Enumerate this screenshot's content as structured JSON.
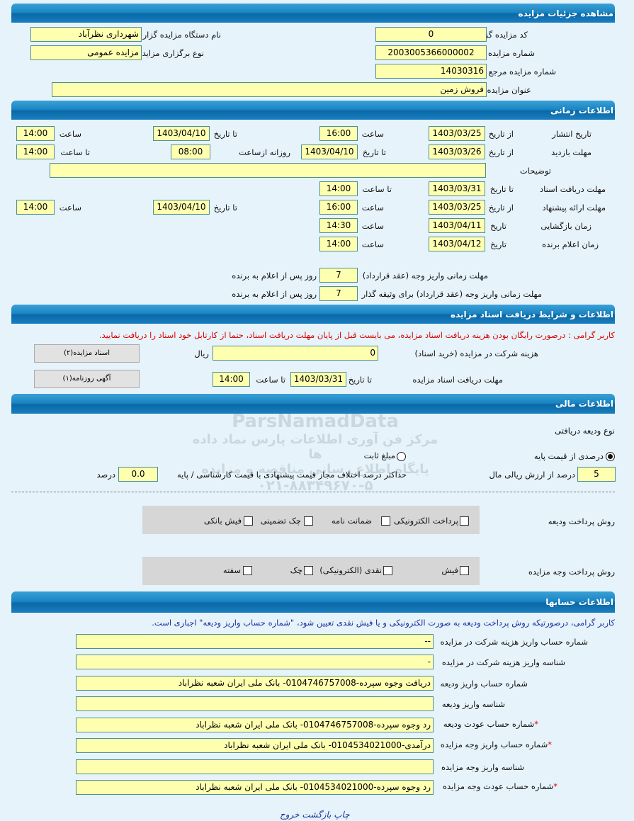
{
  "sections": {
    "details": "مشاهده جزئیات مزایده",
    "timing": "اطلاعات زمانی",
    "documents": "اطلاعات و شرایط دریافت اسناد مزایده",
    "financial": "اطلاعات مالی",
    "accounts": "اطلاعات حسابها"
  },
  "details": {
    "organizer_code_label": "کد مزایده گزار",
    "organizer_code": "0",
    "organizer_name_label": "نام دستگاه مزایده گزار",
    "organizer_name": "شهرداری نظرآباد",
    "auction_number_label": "شماره مزایده",
    "auction_number": "2003005366000002",
    "auction_type_label": "نوع برگزاری مزایده",
    "auction_type": "مزایده عمومی",
    "reference_number_label": "شماره مزایده مرجع",
    "reference_number": "14030316",
    "title_label": "عنوان مزایده",
    "title": "فروش زمین"
  },
  "timing": {
    "publish": {
      "label": "تاریخ انتشار",
      "from_label": "از تاریخ",
      "from": "1403/03/25",
      "time_label": "ساعت",
      "time": "16:00",
      "to_label": "تا تاریخ",
      "to": "1403/04/10",
      "time2_label": "ساعت",
      "time2": "14:00"
    },
    "visit": {
      "label": "مهلت بازدید",
      "from_label": "از تاریخ",
      "from": "1403/03/26",
      "to_label": "تا تاریخ",
      "to": "1403/04/10",
      "daily_label": "روزانه ازساعت",
      "daily_from": "08:00",
      "until_label": "تا ساعت",
      "until": "14:00"
    },
    "description_label": "توضیحات",
    "description": "",
    "doc_deadline": {
      "label": "مهلت دریافت اسناد",
      "to_label": "تا تاریخ",
      "to": "1403/03/31",
      "time_label": "تا ساعت",
      "time": "14:00"
    },
    "offer": {
      "label": "مهلت ارائه پیشنهاد",
      "from_label": "از تاریخ",
      "from": "1403/03/25",
      "time_label": "ساعت",
      "time": "16:00",
      "to_label": "تا تاریخ",
      "to": "1403/04/10",
      "time2_label": "ساعت",
      "time2": "14:00"
    },
    "opening": {
      "label": "زمان بازگشایی",
      "date_label": "تاریخ",
      "date": "1403/04/11",
      "time_label": "ساعت",
      "time": "14:30"
    },
    "winner": {
      "label": "زمان اعلام برنده",
      "date_label": "تاریخ",
      "date": "1403/04/12",
      "time_label": "ساعت",
      "time": "14:00"
    },
    "payment_deadline": {
      "label": "مهلت زمانی واریز وجه (عقد قرارداد)",
      "value": "7",
      "suffix": "روز پس از اعلام به برنده"
    },
    "payment_deadline_guarantor": {
      "label": "مهلت زمانی واریز وجه (عقد قرارداد) برای وثیقه گذار",
      "value": "7",
      "suffix": "روز پس از اعلام به برنده"
    }
  },
  "documents": {
    "notice": "کاربر گرامی : درصورت رایگان بودن هزینه دریافت اسناد مزایده، می بایست قبل از پایان مهلت دریافت اسناد، حتما از کارتابل خود اسناد را دریافت نمایید.",
    "fee_label": "هزینه شرکت در مزایده (خرید اسناد)",
    "fee": "0",
    "currency": "ریال",
    "deadline_label": "مهلت دریافت اسناد مزایده",
    "to_label": "تا تاریخ",
    "to": "1403/03/31",
    "time_label": "تا ساعت",
    "time": "14:00",
    "docs_button": "اسناد مزایده(۲)",
    "ad_button": "آگهی روزنامه(۱)"
  },
  "financial": {
    "deposit_type_label": "نوع ودیعه دریافتی",
    "percent_option": "درصدی از قیمت پایه",
    "percent_selected": true,
    "fixed_option": "مبلغ ثابت",
    "fixed_selected": false,
    "percent_value": "5",
    "percent_suffix": "درصد از ارزش ریالی مال",
    "max_diff_label": "حداکثر درصد اختلاف مجاز قیمت پیشنهادی با قیمت کارشناسی / پایه",
    "max_diff": "0.0",
    "max_diff_suffix": "درصد",
    "deposit_method_label": "روش پرداخت ودیعه",
    "deposit_methods": [
      {
        "label": "پرداخت الکترونیکی",
        "checked": false
      },
      {
        "label": "ضمانت نامه",
        "checked": true
      },
      {
        "label": "چک تضمینی",
        "checked": false
      },
      {
        "label": "فیش بانکی",
        "checked": true
      }
    ],
    "payment_method_label": "روش پرداخت وجه مزایده",
    "payment_methods": [
      {
        "label": "فیش",
        "checked": true
      },
      {
        "label": "نقدی (الکترونیکی)",
        "checked": true
      },
      {
        "label": "چک",
        "checked": false
      },
      {
        "label": "سفته",
        "checked": false
      }
    ]
  },
  "accounts": {
    "notice": "کاربر گرامی، درصورتیکه روش پرداخت ودیعه به صورت الکترونیکی و یا فیش نقدی تعیین شود، \"شماره حساب واریز ودیعه\" اجباری است.",
    "rows": [
      {
        "label": "شماره حساب واریز هزینه شرکت در مزایده",
        "value": "--",
        "required": false
      },
      {
        "label": "شناسه واریز هزینه شرکت در مزایده",
        "value": "-",
        "required": false
      },
      {
        "label": "شماره حساب واریز ودیعه",
        "value": "دریافت وجوه سپرده-0104746757008- بانک ملی ایران شعبه نظراباد",
        "required": false
      },
      {
        "label": "شناسه واریز ودیعه",
        "value": "",
        "required": false
      },
      {
        "label": "شماره حساب عودت ودیعه",
        "value": "رد وجوه سپرده-0104746757008- بانک ملی ایران شعبه نظراباد",
        "required": true
      },
      {
        "label": "شماره حساب واریز وجه مزایده",
        "value": "درآمدی-0104534021000- بانک ملی ایران شعبه نظراباد",
        "required": true
      },
      {
        "label": "شناسه واریز وجه مزایده",
        "value": "",
        "required": false
      },
      {
        "label": "شماره حساب عودت وجه مزایده",
        "value": "رد وجوه سپرده-0104534021000- بانک ملی ایران شعبه نظراباد",
        "required": true
      }
    ],
    "required_mark": "*"
  },
  "footer": {
    "print": "چاپ",
    "back": "بازگشت",
    "exit": "خروج"
  },
  "watermark": {
    "brand": "ParsNamadData",
    "line1": "مرکز فن آوری اطلاعات پارس نماد داده ها",
    "line2": "پایگاه اطلاع رسانی مناقصه و مزایده",
    "phone": "۰۲۱-۸۸۳۴۹۶۷۰-۵"
  },
  "colors": {
    "header": "#1b86c4",
    "field": "#ffffb0",
    "background": "#e6f3fb",
    "notice_red": "#dd0000",
    "notice_blue": "#1a2f9a"
  }
}
